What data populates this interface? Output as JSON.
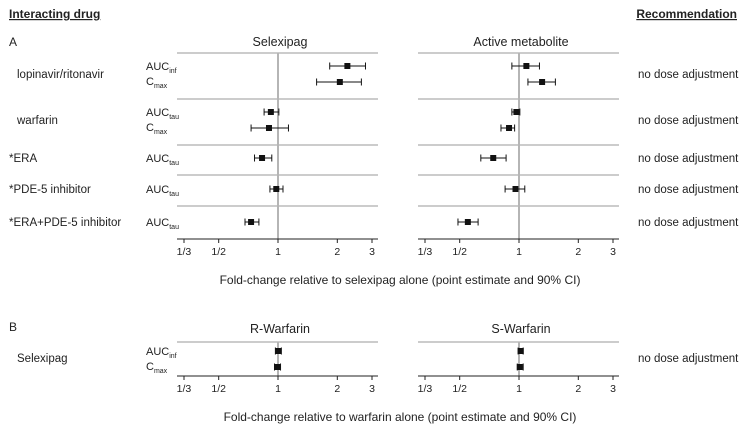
{
  "header": {
    "interacting_drug": "Interacting drug",
    "recommendation": "Recommendation"
  },
  "panel_a": {
    "label": "A",
    "subtitle_left": "Selexipag",
    "subtitle_right": "Active metabolite",
    "xlabel": "Fold-change relative to selexipag alone (point estimate and 90% CI)",
    "rows": [
      {
        "drug": "lopinavir/ritonavir",
        "metrics": [
          {
            "base": "AUC",
            "sub": "inf"
          },
          {
            "base": "C",
            "sub": "max"
          }
        ],
        "recommendation": "no dose adjustment"
      },
      {
        "drug": "warfarin",
        "metrics": [
          {
            "base": "AUC",
            "sub": "tau"
          },
          {
            "base": "C",
            "sub": "max"
          }
        ],
        "recommendation": "no dose adjustment"
      },
      {
        "drug": "*ERA",
        "metrics": [
          {
            "base": "AUC",
            "sub": "tau"
          }
        ],
        "recommendation": "no dose adjustment"
      },
      {
        "drug": "*PDE-5 inhibitor",
        "metrics": [
          {
            "base": "AUC",
            "sub": "tau"
          }
        ],
        "recommendation": "no dose adjustment"
      },
      {
        "drug": "*ERA+PDE-5 inhibitor",
        "metrics": [
          {
            "base": "AUC",
            "sub": "tau"
          }
        ],
        "recommendation": "no dose adjustment"
      }
    ]
  },
  "panel_b": {
    "label": "B",
    "subtitle_left": "R-Warfarin",
    "subtitle_right": "S-Warfarin",
    "xlabel": "Fold-change relative to warfarin alone (point estimate and 90% CI)",
    "rows": [
      {
        "drug": "Selexipag",
        "metrics": [
          {
            "base": "AUC",
            "sub": "inf"
          },
          {
            "base": "C",
            "sub": "max"
          }
        ],
        "recommendation": "no dose adjustment"
      }
    ]
  },
  "chart_data": [
    {
      "type": "forest",
      "title": "Selexipag",
      "xscale": "log",
      "xlim": [
        0.3333,
        3.3
      ],
      "xticks": [
        0.3333,
        0.5,
        1,
        2,
        3
      ],
      "xticklabels": [
        "1/3",
        "1/2",
        "1",
        "2",
        "3"
      ],
      "reference_line": 1,
      "points": [
        {
          "drug": "lopinavir/ritonavir",
          "metric": "AUCinf",
          "estimate": 2.25,
          "ci": [
            1.83,
            2.78
          ]
        },
        {
          "drug": "lopinavir/ritonavir",
          "metric": "Cmax",
          "estimate": 2.06,
          "ci": [
            1.57,
            2.65
          ]
        },
        {
          "drug": "warfarin",
          "metric": "AUCtau",
          "estimate": 0.92,
          "ci": [
            0.85,
            1.01
          ]
        },
        {
          "drug": "warfarin",
          "metric": "Cmax",
          "estimate": 0.9,
          "ci": [
            0.73,
            1.13
          ]
        },
        {
          "drug": "*ERA",
          "metric": "AUCtau",
          "estimate": 0.83,
          "ci": [
            0.76,
            0.93
          ]
        },
        {
          "drug": "*PDE-5 inhibitor",
          "metric": "AUCtau",
          "estimate": 0.98,
          "ci": [
            0.91,
            1.06
          ]
        },
        {
          "drug": "*ERA+PDE-5 inhibitor",
          "metric": "AUCtau",
          "estimate": 0.73,
          "ci": [
            0.68,
            0.8
          ]
        }
      ]
    },
    {
      "type": "forest",
      "title": "Active metabolite",
      "xscale": "log",
      "xlim": [
        0.3333,
        3.3
      ],
      "xticks": [
        0.3333,
        0.5,
        1,
        2,
        3
      ],
      "xticklabels": [
        "1/3",
        "1/2",
        "1",
        "2",
        "3"
      ],
      "reference_line": 1,
      "points": [
        {
          "drug": "lopinavir/ritonavir",
          "metric": "AUCinf",
          "estimate": 1.09,
          "ci": [
            0.92,
            1.27
          ]
        },
        {
          "drug": "lopinavir/ritonavir",
          "metric": "Cmax",
          "estimate": 1.31,
          "ci": [
            1.11,
            1.53
          ]
        },
        {
          "drug": "warfarin",
          "metric": "AUCtau",
          "estimate": 0.97,
          "ci": [
            0.92,
            1.01
          ]
        },
        {
          "drug": "warfarin",
          "metric": "Cmax",
          "estimate": 0.89,
          "ci": [
            0.81,
            0.95
          ]
        },
        {
          "drug": "*ERA",
          "metric": "AUCtau",
          "estimate": 0.74,
          "ci": [
            0.64,
            0.86
          ]
        },
        {
          "drug": "*PDE-5 inhibitor",
          "metric": "AUCtau",
          "estimate": 0.96,
          "ci": [
            0.85,
            1.07
          ]
        },
        {
          "drug": "*ERA+PDE-5 inhibitor",
          "metric": "AUCtau",
          "estimate": 0.55,
          "ci": [
            0.49,
            0.62
          ]
        }
      ]
    },
    {
      "type": "forest",
      "title": "R-Warfarin",
      "xscale": "log",
      "xlim": [
        0.3333,
        3.3
      ],
      "xticks": [
        0.3333,
        0.5,
        1,
        2,
        3
      ],
      "xticklabels": [
        "1/3",
        "1/2",
        "1",
        "2",
        "3"
      ],
      "reference_line": 1,
      "points": [
        {
          "drug": "Selexipag",
          "metric": "AUCinf",
          "estimate": 1.0,
          "ci": [
            0.97,
            1.04
          ]
        },
        {
          "drug": "Selexipag",
          "metric": "Cmax",
          "estimate": 0.99,
          "ci": [
            0.96,
            1.03
          ]
        }
      ]
    },
    {
      "type": "forest",
      "title": "S-Warfarin",
      "xscale": "log",
      "xlim": [
        0.3333,
        3.3
      ],
      "xticks": [
        0.3333,
        0.5,
        1,
        2,
        3
      ],
      "xticklabels": [
        "1/3",
        "1/2",
        "1",
        "2",
        "3"
      ],
      "reference_line": 1,
      "points": [
        {
          "drug": "Selexipag",
          "metric": "AUCinf",
          "estimate": 1.02,
          "ci": [
            0.99,
            1.05
          ]
        },
        {
          "drug": "Selexipag",
          "metric": "Cmax",
          "estimate": 1.01,
          "ci": [
            0.98,
            1.05
          ]
        }
      ]
    }
  ]
}
